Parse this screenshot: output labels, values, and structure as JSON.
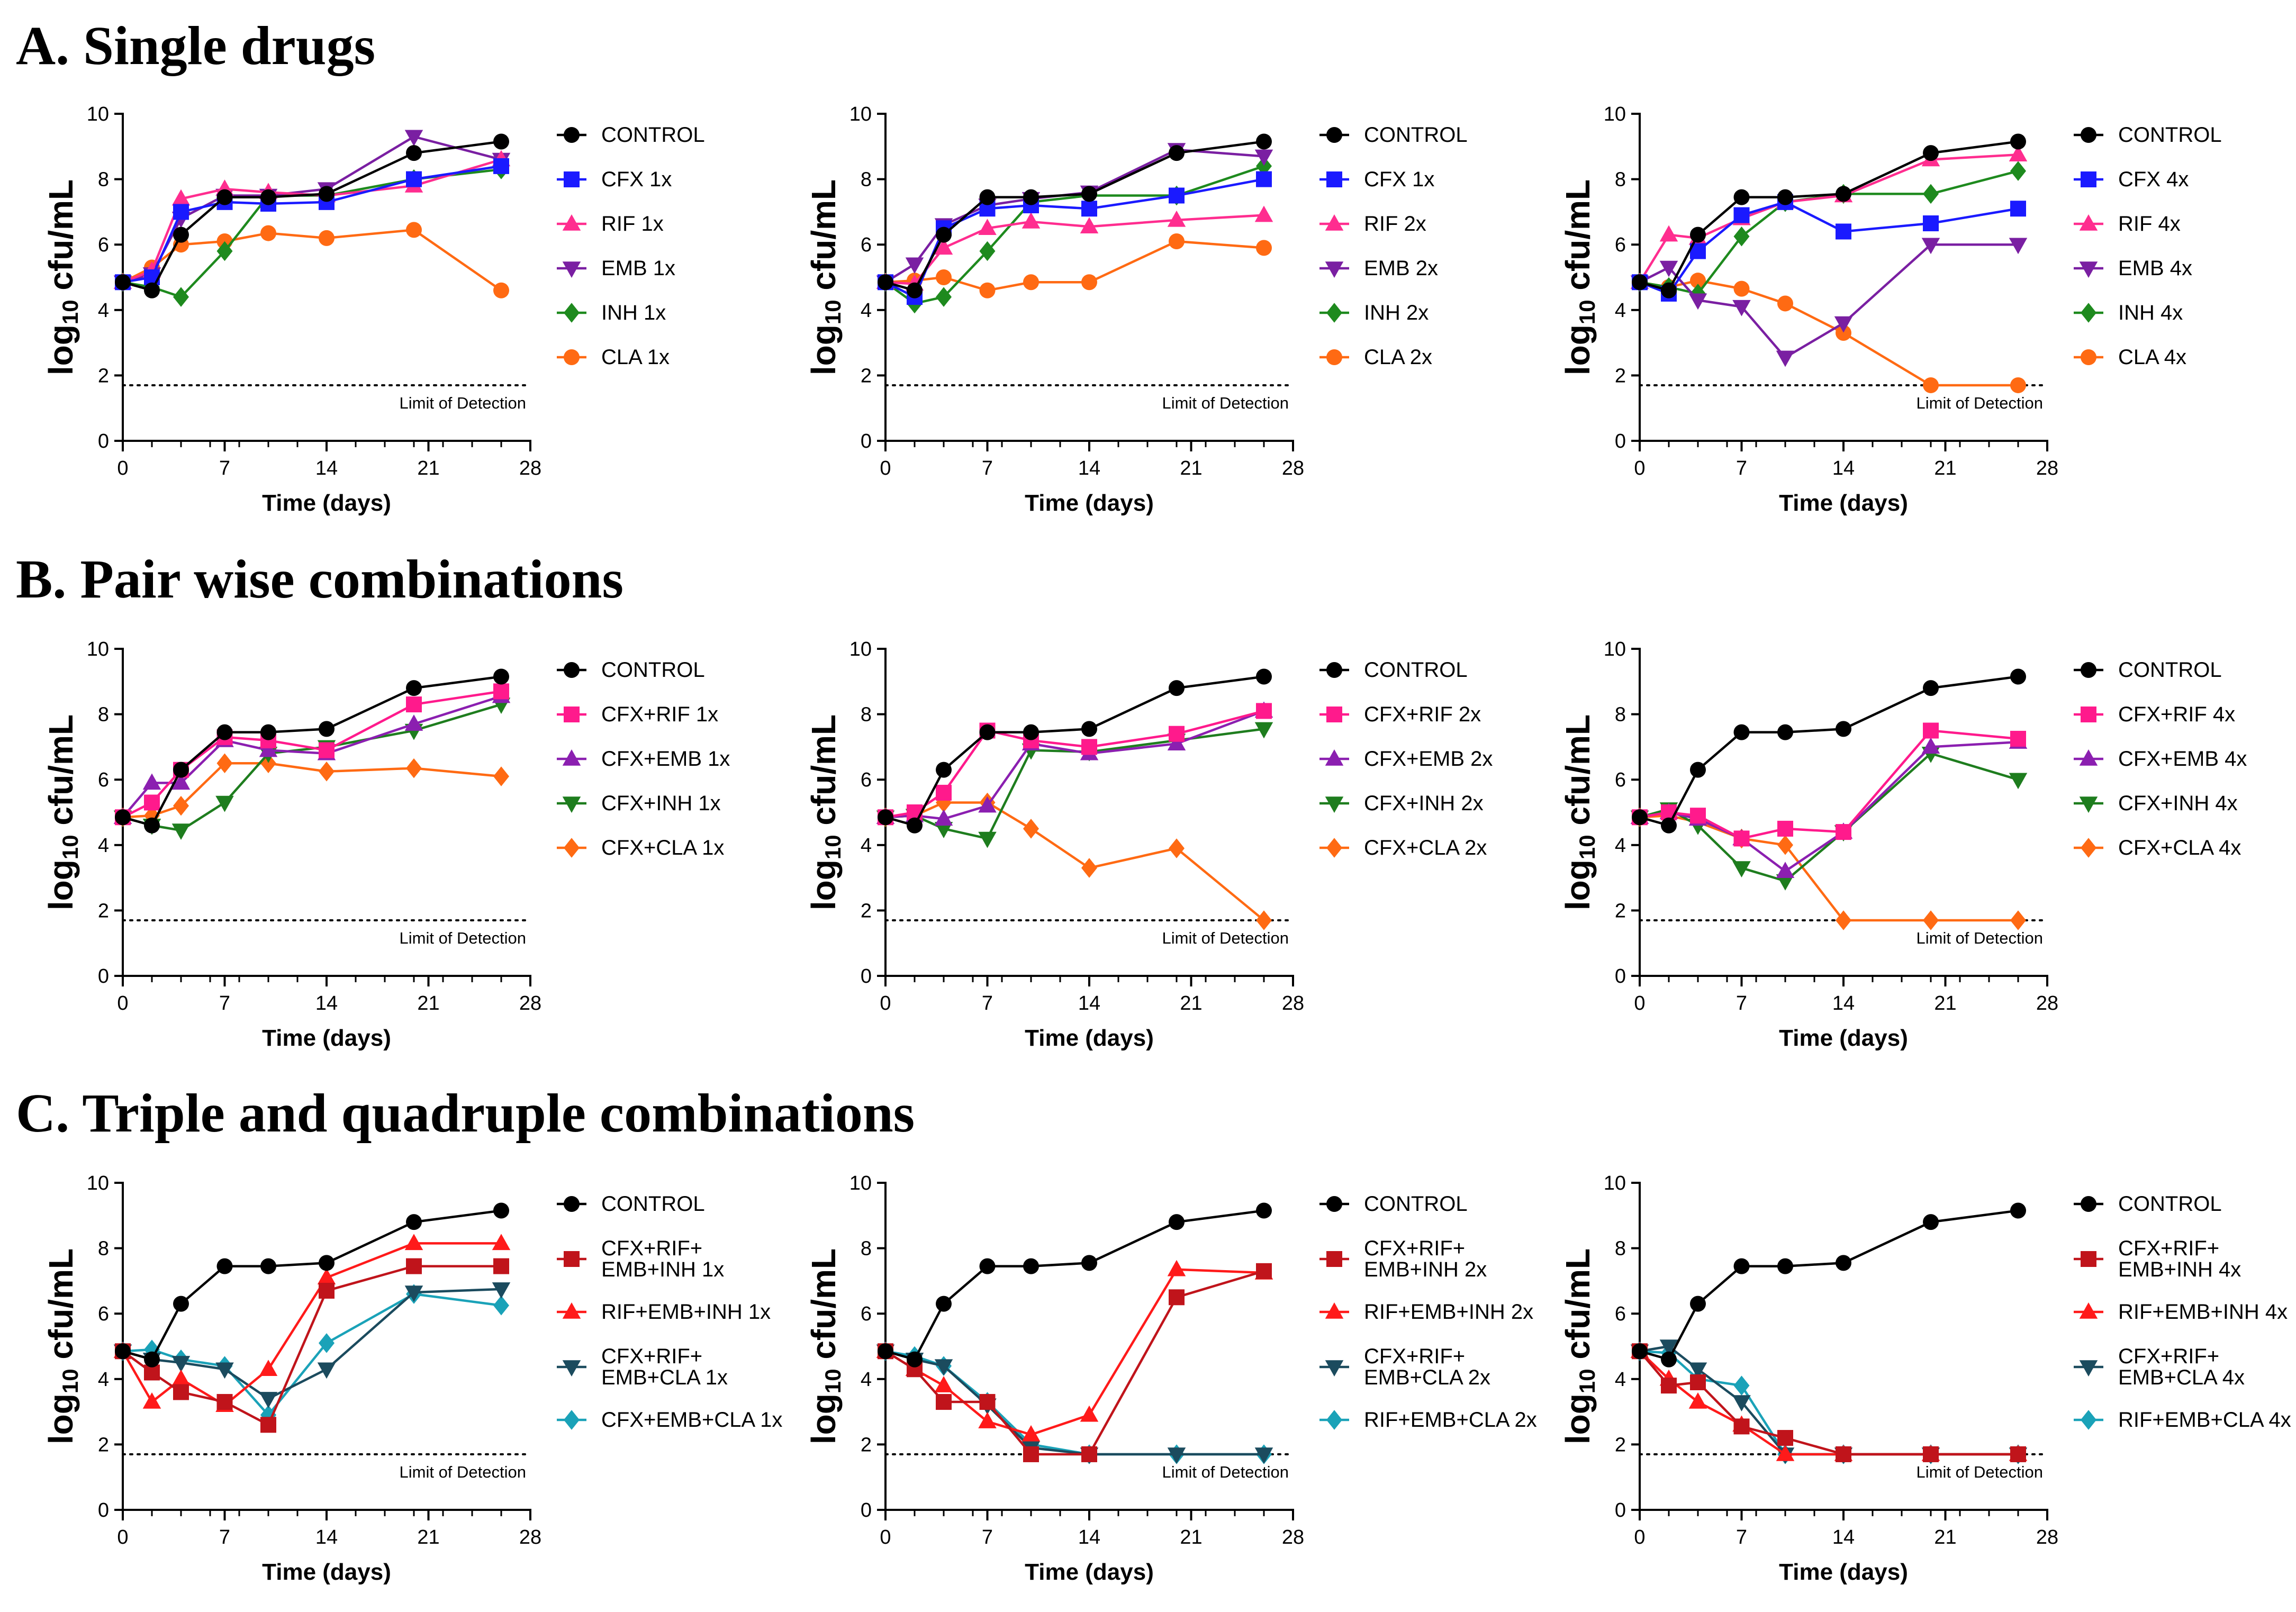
{
  "figure": {
    "sections": [
      {
        "id": "A",
        "title": "A. Single drugs"
      },
      {
        "id": "B",
        "title": "B.  Pair wise combinations"
      },
      {
        "id": "C",
        "title": "C. Triple and quadruple combinations"
      }
    ],
    "xlabel": "Time (days)",
    "ylabel": "log10 cfu/mL",
    "ylabel_main": "log",
    "ylabel_sub": "10",
    "ylabel_rest": " cfu/mL",
    "lod_label": "Limit of Detection",
    "lod_value": 1.7,
    "xticks": [
      0,
      7,
      14,
      21,
      28
    ],
    "yticks": [
      0,
      2,
      4,
      6,
      8,
      10
    ],
    "xlim": [
      0,
      28
    ],
    "ylim": [
      0,
      10
    ],
    "x_minor_step": 2
  },
  "colors": {
    "CONTROL": "#000000",
    "CFX": "#1a1aff",
    "RIF": "#ff2d8f",
    "EMB": "#7a1fa2",
    "INH": "#1e8a1e",
    "CLA": "#ff6a13",
    "PINK": "#ff1a8c",
    "PURPLE": "#8b1fb0",
    "GREEN": "#1e7d1e",
    "ORANGE": "#ff6a13",
    "DARKRED": "#c0141b",
    "RED": "#ff1a1a",
    "NAVY": "#1b4b5e",
    "TEAL": "#1aa2b8"
  },
  "chart_data": [
    {
      "type": "line",
      "section": "A",
      "title": "",
      "xlabel": "Time (days)",
      "ylabel": "log10 cfu/mL",
      "xlim": [
        0,
        28
      ],
      "ylim": [
        0,
        10
      ],
      "x": [
        0,
        2,
        4,
        7,
        10,
        14,
        20,
        26
      ],
      "series": [
        {
          "name": "CONTROL",
          "color": "#000000",
          "marker": "circle",
          "values": [
            4.85,
            4.6,
            6.3,
            7.45,
            7.45,
            7.55,
            8.8,
            9.15
          ]
        },
        {
          "name": "CFX 1x",
          "color": "#1a1aff",
          "marker": "square",
          "values": [
            4.85,
            5.0,
            7.0,
            7.3,
            7.25,
            7.3,
            8.0,
            8.4
          ]
        },
        {
          "name": "RIF 1x",
          "color": "#ff2d8f",
          "marker": "triangle",
          "values": [
            4.85,
            5.2,
            7.4,
            7.7,
            7.6,
            7.5,
            7.8,
            8.6
          ]
        },
        {
          "name": "EMB 1x",
          "color": "#7a1fa2",
          "marker": "tri-down",
          "values": [
            4.85,
            5.1,
            6.8,
            7.5,
            7.5,
            7.7,
            9.3,
            8.6
          ]
        },
        {
          "name": "INH 1x",
          "color": "#1e8a1e",
          "marker": "diamond",
          "values": [
            4.85,
            4.7,
            4.4,
            5.8,
            7.5,
            7.5,
            8.0,
            8.3
          ]
        },
        {
          "name": "CLA 1x",
          "color": "#ff6a13",
          "marker": "circle",
          "values": [
            4.85,
            5.3,
            6.0,
            6.1,
            6.35,
            6.2,
            6.45,
            4.6
          ]
        }
      ]
    },
    {
      "type": "line",
      "section": "A",
      "title": "",
      "xlabel": "Time (days)",
      "ylabel": "log10 cfu/mL",
      "xlim": [
        0,
        28
      ],
      "ylim": [
        0,
        10
      ],
      "x": [
        0,
        2,
        4,
        7,
        10,
        14,
        20,
        26
      ],
      "series": [
        {
          "name": "CONTROL",
          "color": "#000000",
          "marker": "circle",
          "values": [
            4.85,
            4.6,
            6.3,
            7.45,
            7.45,
            7.55,
            8.8,
            9.15
          ]
        },
        {
          "name": "CFX 1x",
          "color": "#1a1aff",
          "marker": "square",
          "values": [
            4.85,
            4.4,
            6.5,
            7.1,
            7.2,
            7.1,
            7.5,
            8.0
          ]
        },
        {
          "name": "RIF 2x",
          "color": "#ff2d8f",
          "marker": "triangle",
          "values": [
            4.85,
            4.8,
            5.9,
            6.5,
            6.7,
            6.55,
            6.75,
            6.9
          ]
        },
        {
          "name": "EMB 2x",
          "color": "#7a1fa2",
          "marker": "tri-down",
          "values": [
            4.85,
            5.4,
            6.6,
            7.2,
            7.4,
            7.6,
            8.9,
            8.7
          ]
        },
        {
          "name": "INH 2x",
          "color": "#1e8a1e",
          "marker": "diamond",
          "values": [
            4.85,
            4.2,
            4.4,
            5.8,
            7.3,
            7.5,
            7.5,
            8.4
          ]
        },
        {
          "name": "CLA 2x",
          "color": "#ff6a13",
          "marker": "circle",
          "values": [
            4.85,
            4.9,
            5.0,
            4.6,
            4.85,
            4.85,
            6.1,
            5.9
          ]
        }
      ]
    },
    {
      "type": "line",
      "section": "A",
      "title": "",
      "xlabel": "Time (days)",
      "ylabel": "log10 cfu/mL",
      "xlim": [
        0,
        28
      ],
      "ylim": [
        0,
        10
      ],
      "x": [
        0,
        2,
        4,
        7,
        10,
        14,
        20,
        26
      ],
      "series": [
        {
          "name": "CONTROL",
          "color": "#000000",
          "marker": "circle",
          "values": [
            4.85,
            4.6,
            6.3,
            7.45,
            7.45,
            7.55,
            8.8,
            9.15
          ]
        },
        {
          "name": "CFX 4x",
          "color": "#1a1aff",
          "marker": "square",
          "values": [
            4.85,
            4.5,
            5.8,
            6.9,
            7.3,
            6.4,
            6.65,
            7.1
          ]
        },
        {
          "name": "RIF 4x",
          "color": "#ff2d8f",
          "marker": "triangle",
          "values": [
            4.85,
            6.3,
            6.2,
            6.8,
            7.3,
            7.5,
            8.6,
            8.75
          ]
        },
        {
          "name": "EMB 4x",
          "color": "#7a1fa2",
          "marker": "tri-down",
          "values": [
            4.85,
            5.3,
            4.3,
            4.1,
            2.55,
            3.6,
            6.0,
            6.0
          ]
        },
        {
          "name": "INH 4x",
          "color": "#1e8a1e",
          "marker": "diamond",
          "values": [
            4.85,
            4.7,
            4.5,
            6.25,
            7.3,
            7.55,
            7.55,
            8.25
          ]
        },
        {
          "name": "CLA 4x",
          "color": "#ff6a13",
          "marker": "circle",
          "values": [
            4.85,
            4.7,
            4.9,
            4.65,
            4.2,
            3.3,
            1.7,
            1.7
          ]
        }
      ]
    },
    {
      "type": "line",
      "section": "B",
      "title": "",
      "xlabel": "Time (days)",
      "ylabel": "log10 cfu/mL",
      "xlim": [
        0,
        28
      ],
      "ylim": [
        0,
        10
      ],
      "x": [
        0,
        2,
        4,
        7,
        10,
        14,
        20,
        26
      ],
      "series": [
        {
          "name": "CONTROL",
          "color": "#000000",
          "marker": "circle",
          "values": [
            4.85,
            4.6,
            6.3,
            7.45,
            7.45,
            7.55,
            8.8,
            9.15
          ]
        },
        {
          "name": "CFX+RIF 1x",
          "color": "#ff1a8c",
          "marker": "square",
          "values": [
            4.85,
            5.3,
            6.3,
            7.3,
            7.2,
            6.9,
            8.3,
            8.7
          ]
        },
        {
          "name": "CFX+EMB 1x",
          "color": "#8b1fb0",
          "marker": "triangle",
          "values": [
            4.85,
            5.9,
            5.9,
            7.2,
            6.9,
            6.8,
            7.7,
            8.55
          ]
        },
        {
          "name": "CFX+INH 1x",
          "color": "#1e7d1e",
          "marker": "tri-down",
          "values": [
            4.85,
            4.6,
            4.45,
            5.3,
            6.8,
            7.0,
            7.5,
            8.3
          ]
        },
        {
          "name": "CFX+CLA 1x",
          "color": "#ff6a13",
          "marker": "diamond",
          "values": [
            4.85,
            4.9,
            5.2,
            6.5,
            6.5,
            6.25,
            6.35,
            6.1
          ]
        }
      ]
    },
    {
      "type": "line",
      "section": "B",
      "title": "",
      "xlabel": "Time (days)",
      "ylabel": "log10 cfu/mL",
      "xlim": [
        0,
        28
      ],
      "ylim": [
        0,
        10
      ],
      "x": [
        0,
        2,
        4,
        7,
        10,
        14,
        20,
        26
      ],
      "series": [
        {
          "name": "CONTROL",
          "color": "#000000",
          "marker": "circle",
          "values": [
            4.85,
            4.6,
            6.3,
            7.45,
            7.45,
            7.55,
            8.8,
            9.15
          ]
        },
        {
          "name": "CFX+RIF 2x",
          "color": "#ff1a8c",
          "marker": "square",
          "values": [
            4.85,
            5.0,
            5.6,
            7.5,
            7.2,
            7.0,
            7.4,
            8.1
          ]
        },
        {
          "name": "CFX+EMB 2x",
          "color": "#8b1fb0",
          "marker": "triangle",
          "values": [
            4.85,
            4.9,
            4.8,
            5.2,
            7.1,
            6.8,
            7.1,
            8.1
          ]
        },
        {
          "name": "CFX+INH 2x",
          "color": "#1e7d1e",
          "marker": "tri-down",
          "values": [
            4.85,
            4.9,
            4.5,
            4.2,
            6.9,
            6.85,
            7.2,
            7.55
          ]
        },
        {
          "name": "CFX+CLA 2x",
          "color": "#ff6a13",
          "marker": "diamond",
          "values": [
            4.85,
            4.9,
            5.3,
            5.3,
            4.5,
            3.3,
            3.9,
            1.7
          ]
        }
      ]
    },
    {
      "type": "line",
      "section": "B",
      "title": "",
      "xlabel": "Time (days)",
      "ylabel": "log10 cfu/mL",
      "xlim": [
        0,
        28
      ],
      "ylim": [
        0,
        10
      ],
      "x": [
        0,
        2,
        4,
        7,
        10,
        14,
        20,
        26
      ],
      "series": [
        {
          "name": "CONTROL",
          "color": "#000000",
          "marker": "circle",
          "values": [
            4.85,
            4.6,
            6.3,
            7.45,
            7.45,
            7.55,
            8.8,
            9.15
          ]
        },
        {
          "name": "CFX+RIF 4x",
          "color": "#ff1a8c",
          "marker": "square",
          "values": [
            4.85,
            5.0,
            4.9,
            4.2,
            4.5,
            4.4,
            7.5,
            7.25
          ]
        },
        {
          "name": "CFX+EMB 4x",
          "color": "#8b1fb0",
          "marker": "triangle",
          "values": [
            4.85,
            5.0,
            4.8,
            4.2,
            3.2,
            4.4,
            7.0,
            7.15
          ]
        },
        {
          "name": "CFX+INH 4x",
          "color": "#1e7d1e",
          "marker": "tri-down",
          "values": [
            4.85,
            5.1,
            4.6,
            3.3,
            2.9,
            4.4,
            6.8,
            6.0
          ]
        },
        {
          "name": "CFX+CLA 4x",
          "color": "#ff6a13",
          "marker": "diamond",
          "values": [
            4.85,
            4.9,
            4.7,
            4.2,
            4.0,
            1.7,
            1.7,
            1.7
          ]
        }
      ]
    },
    {
      "type": "line",
      "section": "C",
      "title": "",
      "xlabel": "Time (days)",
      "ylabel": "log10 cfu/mL",
      "xlim": [
        0,
        28
      ],
      "ylim": [
        0,
        10
      ],
      "x": [
        0,
        2,
        4,
        7,
        10,
        14,
        20,
        26
      ],
      "series": [
        {
          "name": "CONTROL",
          "color": "#000000",
          "marker": "circle",
          "values": [
            4.85,
            4.6,
            6.3,
            7.45,
            7.45,
            7.55,
            8.8,
            9.15
          ]
        },
        {
          "name": "CFX+RIF+\nEMB+INH 1x",
          "color": "#c0141b",
          "marker": "square",
          "values": [
            4.85,
            4.2,
            3.6,
            3.3,
            2.6,
            6.7,
            7.45,
            7.45
          ]
        },
        {
          "name": "RIF+EMB+INH 1x",
          "color": "#ff1a1a",
          "marker": "triangle",
          "values": [
            4.85,
            3.3,
            4.0,
            3.2,
            4.3,
            7.1,
            8.15,
            8.15
          ]
        },
        {
          "name": "CFX+RIF+\nEMB+CLA 1x",
          "color": "#1b4b5e",
          "marker": "tri-down",
          "values": [
            4.85,
            4.6,
            4.5,
            4.3,
            3.4,
            4.3,
            6.65,
            6.75
          ]
        },
        {
          "name": "CFX+EMB+CLA 1x",
          "color": "#1aa2b8",
          "marker": "diamond",
          "values": [
            4.85,
            4.9,
            4.6,
            4.4,
            2.9,
            5.1,
            6.6,
            6.25
          ]
        }
      ]
    },
    {
      "type": "line",
      "section": "C",
      "title": "",
      "xlabel": "Time (days)",
      "ylabel": "log10 cfu/mL",
      "xlim": [
        0,
        28
      ],
      "ylim": [
        0,
        10
      ],
      "x": [
        0,
        2,
        4,
        7,
        10,
        14,
        20,
        26
      ],
      "series": [
        {
          "name": "CONTROL",
          "color": "#000000",
          "marker": "circle",
          "values": [
            4.85,
            4.6,
            6.3,
            7.45,
            7.45,
            7.55,
            8.8,
            9.15
          ]
        },
        {
          "name": "CFX+RIF+\nEMB+INH 2x",
          "color": "#c0141b",
          "marker": "square",
          "values": [
            4.85,
            4.3,
            3.3,
            3.3,
            1.7,
            1.7,
            6.5,
            7.3
          ]
        },
        {
          "name": "RIF+EMB+INH 2x",
          "color": "#ff1a1a",
          "marker": "triangle",
          "values": [
            4.85,
            4.3,
            3.8,
            2.7,
            2.3,
            2.9,
            7.35,
            7.25
          ]
        },
        {
          "name": "CFX+RIF+\nEMB+CLA 2x",
          "color": "#1b4b5e",
          "marker": "tri-down",
          "values": [
            4.85,
            4.6,
            4.4,
            3.2,
            1.9,
            1.7,
            1.7,
            1.7
          ]
        },
        {
          "name": "RIF+EMB+CLA 2x",
          "color": "#1aa2b8",
          "marker": "diamond",
          "values": [
            4.85,
            4.7,
            4.4,
            3.3,
            2.0,
            1.7,
            1.7,
            1.7
          ]
        }
      ]
    },
    {
      "type": "line",
      "section": "C",
      "title": "",
      "xlabel": "Time (days)",
      "ylabel": "log10 cfu/mL",
      "xlim": [
        0,
        28
      ],
      "ylim": [
        0,
        10
      ],
      "x": [
        0,
        2,
        4,
        7,
        10,
        14,
        20,
        26
      ],
      "series": [
        {
          "name": "CONTROL",
          "color": "#000000",
          "marker": "circle",
          "values": [
            4.85,
            4.6,
            6.3,
            7.45,
            7.45,
            7.55,
            8.8,
            9.15
          ]
        },
        {
          "name": "CFX+RIF+\nEMB+INH 4x",
          "color": "#c0141b",
          "marker": "square",
          "values": [
            4.85,
            3.8,
            3.9,
            2.55,
            2.2,
            1.7,
            1.7,
            1.7
          ]
        },
        {
          "name": "RIF+EMB+INH 4x",
          "color": "#ff1a1a",
          "marker": "triangle",
          "values": [
            4.85,
            4.0,
            3.3,
            2.6,
            1.7,
            1.7,
            1.7,
            1.7
          ]
        },
        {
          "name": "CFX+RIF+\nEMB+CLA 4x",
          "color": "#1b4b5e",
          "marker": "tri-down",
          "values": [
            4.85,
            5.0,
            4.3,
            3.3,
            1.7,
            1.7,
            1.7,
            1.7
          ]
        },
        {
          "name": "RIF+EMB+CLA 4x",
          "color": "#1aa2b8",
          "marker": "diamond",
          "values": [
            4.85,
            4.8,
            4.0,
            3.8,
            1.7,
            1.7,
            1.7,
            1.7
          ]
        }
      ]
    }
  ]
}
